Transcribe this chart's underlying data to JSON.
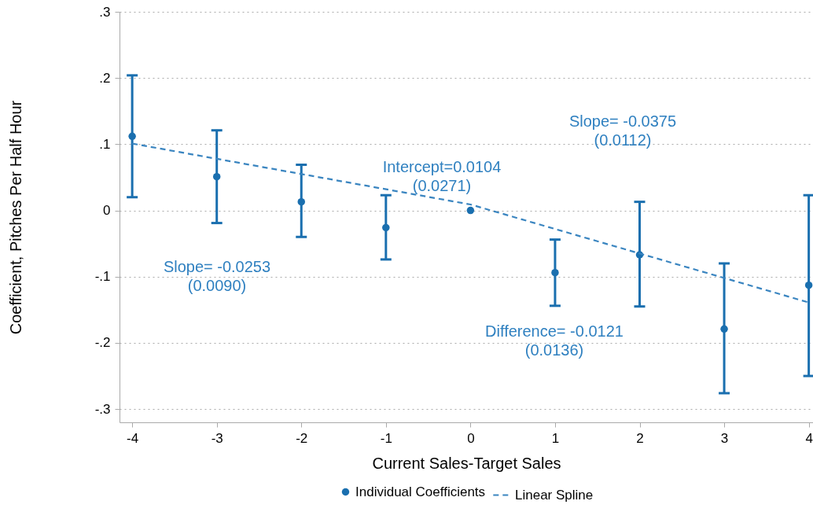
{
  "chart_data": {
    "type": "scatter",
    "xlabel": "Current Sales-Target Sales",
    "ylabel": "Coefficient, Pitches Per Half Hour",
    "xlim": [
      -4.15,
      4.05
    ],
    "xticks": [
      -4,
      -3,
      -2,
      -1,
      0,
      1,
      2,
      3,
      4
    ],
    "ylim": [
      -0.32,
      0.3
    ],
    "yticks": [
      {
        "value": -0.3,
        "label": "-.3"
      },
      {
        "value": -0.2,
        "label": "-.2"
      },
      {
        "value": -0.1,
        "label": "-.1"
      },
      0,
      {
        "value": 0.1,
        "label": ".1"
      },
      {
        "value": 0.2,
        "label": ".2"
      },
      {
        "value": 0.3,
        "label": ".3"
      }
    ],
    "grid": "y",
    "legend": "bottom",
    "annotations": [
      "Intercept=0.0104\n(0.0271)",
      "Slope= -0.0375\n(0.0112)",
      "Slope= -0.0253\n(0.0090)",
      "Difference= -0.0121\n(0.0136)"
    ],
    "series": [
      {
        "name": "Individual Coefficients",
        "type": "scatter",
        "marker": "circle",
        "color": "#1a6faf",
        "x": [
          -4,
          -3,
          -2,
          -1,
          0,
          1,
          2,
          3,
          4
        ],
        "values": [
          0.112,
          0.051,
          0.013,
          -0.026,
          0,
          -0.094,
          -0.067,
          -0.179,
          -0.113
        ],
        "errors": [
          [
            0.02,
            0.204
          ],
          [
            -0.019,
            0.121
          ],
          [
            -0.04,
            0.069
          ],
          [
            -0.074,
            0.023
          ],
          null,
          [
            -0.144,
            -0.044
          ],
          [
            -0.145,
            0.013
          ],
          [
            -0.276,
            -0.08
          ],
          [
            -0.25,
            0.023
          ]
        ]
      },
      {
        "name": "Linear Spline",
        "type": "line",
        "line_style": "dashed",
        "color": "#3a85c0",
        "x": [
          -4,
          0,
          4
        ],
        "values": [
          0.101,
          0.009,
          -0.139
        ]
      }
    ]
  }
}
